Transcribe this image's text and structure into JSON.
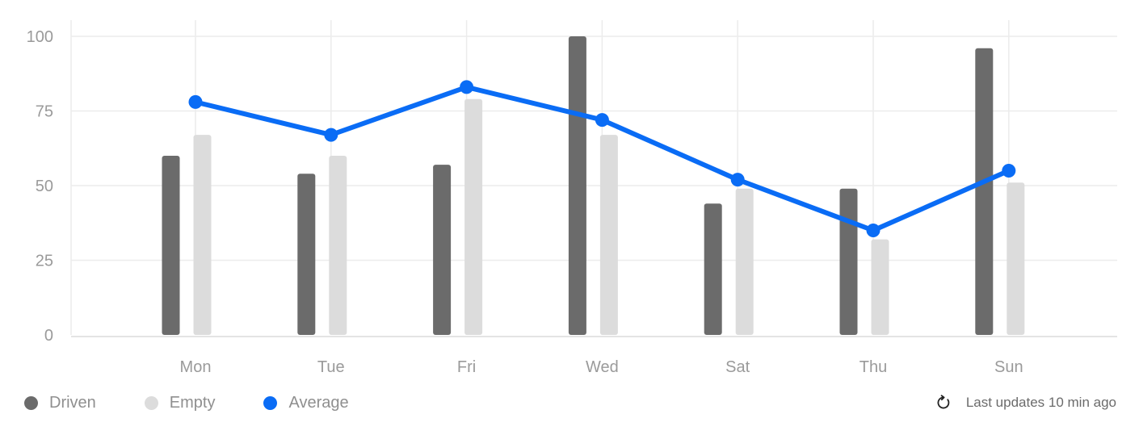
{
  "chart_data": {
    "type": "bar",
    "categories": [
      "Mon",
      "Tue",
      "Fri",
      "Wed",
      "Sat",
      "Thu",
      "Sun"
    ],
    "series": [
      {
        "name": "Driven",
        "type": "bar",
        "color": "#6b6b6b",
        "values": [
          60,
          54,
          57,
          100,
          44,
          49,
          96
        ]
      },
      {
        "name": "Empty",
        "type": "bar",
        "color": "#dcdcdc",
        "values": [
          67,
          60,
          79,
          67,
          49,
          32,
          51
        ]
      },
      {
        "name": "Average",
        "type": "line",
        "color": "#0a6cf5",
        "values": [
          78,
          67,
          83,
          72,
          52,
          35,
          55
        ]
      }
    ],
    "yticks": [
      "0",
      "25",
      "50",
      "75",
      "100"
    ],
    "ylim": [
      0,
      100
    ],
    "grid": true,
    "legend_position": "bottom-left"
  },
  "legend": [
    {
      "label": "Driven",
      "color": "#6b6b6b"
    },
    {
      "label": "Empty",
      "color": "#dcdcdc"
    },
    {
      "label": "Average",
      "color": "#0a6cf5"
    }
  ],
  "footer": {
    "update_text": "Last updates 10 min ago",
    "update_icon": "refresh-icon"
  }
}
